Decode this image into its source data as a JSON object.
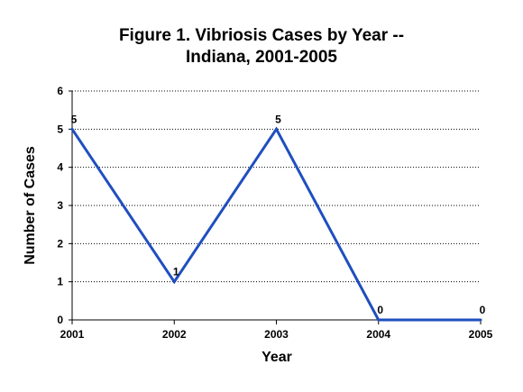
{
  "chart_data": {
    "type": "line",
    "title_line1": "Figure 1.  Vibriosis Cases by Year --",
    "title_line2": "Indiana, 2001-2005",
    "xlabel": "Year",
    "ylabel": "Number of Cases",
    "categories": [
      "2001",
      "2002",
      "2003",
      "2004",
      "2005"
    ],
    "values": [
      5,
      1,
      5,
      0,
      0
    ],
    "data_labels": [
      "5",
      "1",
      "5",
      "0",
      "0"
    ],
    "yticks": [
      "0",
      "1",
      "2",
      "3",
      "4",
      "5",
      "6"
    ],
    "ylim": [
      0,
      6
    ],
    "grid": "horizontal dotted",
    "legend": "none",
    "line_color": "#1f4fbf"
  }
}
